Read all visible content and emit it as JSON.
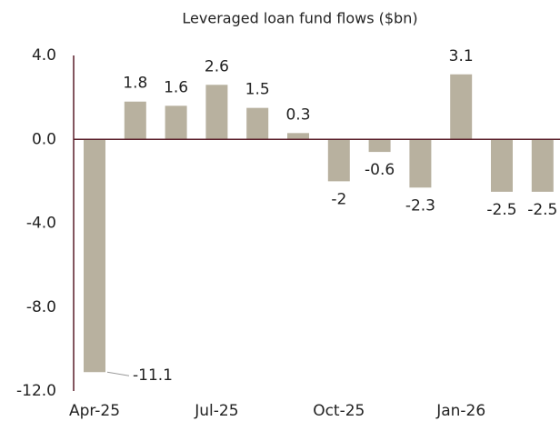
{
  "chart_data": {
    "type": "bar",
    "title": "Leveraged loan fund flows ($bn)",
    "categories": [
      "Apr-25",
      null,
      null,
      "Jul-25",
      null,
      null,
      "Oct-25",
      null,
      null,
      "Jan-26",
      null,
      null
    ],
    "values": [
      -11.1,
      1.8,
      1.6,
      2.6,
      1.5,
      0.3,
      -2.0,
      -0.6,
      -2.3,
      3.1,
      -2.5,
      -2.5
    ],
    "color": "#b8b19f",
    "ylim": [
      -12,
      4
    ],
    "yticks": [
      {
        "value": 4,
        "label": "4.0"
      },
      {
        "value": 0,
        "label": "0.0"
      },
      {
        "value": -4,
        "label": "-4.0"
      },
      {
        "value": -8,
        "label": "-8.0"
      },
      {
        "value": -12,
        "label": "-12.0"
      }
    ],
    "grid": false
  }
}
